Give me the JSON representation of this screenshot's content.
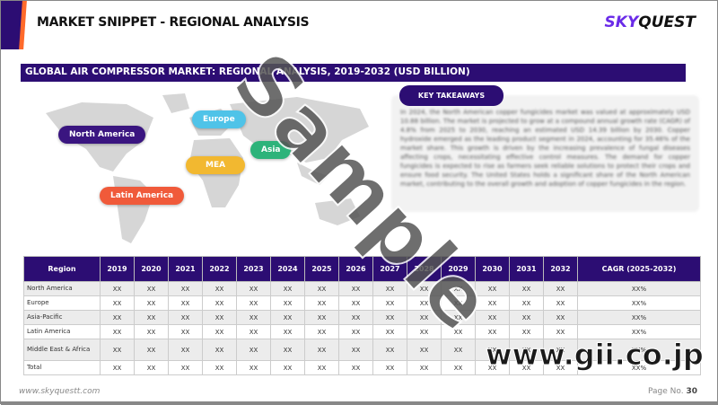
{
  "header": {
    "title": "MARKET SNIPPET - REGIONAL ANALYSIS",
    "logo_a": "SKY",
    "logo_b": "QUEST"
  },
  "subtitle": "GLOBAL AIR COMPRESSOR MARKET: REGIONAL ANALYSIS, 2019-2032 (USD BILLION)",
  "map": {
    "labels": [
      {
        "text": "North America",
        "color": "#3a1580"
      },
      {
        "text": "Europe",
        "color": "#4fc3e8"
      },
      {
        "text": "Asia",
        "color": "#2db37a"
      },
      {
        "text": "MEA",
        "color": "#f2b830"
      },
      {
        "text": "Latin America",
        "color": "#f05a3a"
      }
    ]
  },
  "key_takeaways": {
    "label": "KEY TAKEAWAYS",
    "text": "In 2024, the North American copper fungicides market was valued at approximately USD 10.88 billion. The market is projected to grow at a compound annual growth rate (CAGR) of 4.8% from 2025 to 2030, reaching an estimated USD 14.39 billion by 2030. Copper hydroxide emerged as the leading product segment in 2024, accounting for 35.46% of the market share. This growth is driven by the increasing prevalence of fungal diseases affecting crops, necessitating effective control measures. The demand for copper fungicides is expected to rise as farmers seek reliable solutions to protect their crops and ensure food security. The United States holds a significant share of the North American market, contributing to the overall growth and adoption of copper fungicides in the region."
  },
  "table": {
    "headers": [
      "Region",
      "2019",
      "2020",
      "2021",
      "2022",
      "2023",
      "2024",
      "2025",
      "2026",
      "2027",
      "2028",
      "2029",
      "2030",
      "2031",
      "2032",
      "CAGR (2025-2032)"
    ],
    "rows": [
      [
        "North America",
        "XX",
        "XX",
        "XX",
        "XX",
        "XX",
        "XX",
        "XX",
        "XX",
        "XX",
        "XX",
        "XX",
        "XX",
        "XX",
        "XX",
        "XX%"
      ],
      [
        "Europe",
        "XX",
        "XX",
        "XX",
        "XX",
        "XX",
        "XX",
        "XX",
        "XX",
        "XX",
        "XX",
        "XX",
        "XX",
        "XX",
        "XX",
        "XX%"
      ],
      [
        "Asia-Pacific",
        "XX",
        "XX",
        "XX",
        "XX",
        "XX",
        "XX",
        "XX",
        "XX",
        "XX",
        "XX",
        "XX",
        "XX",
        "XX",
        "XX",
        "XX%"
      ],
      [
        "Latin America",
        "XX",
        "XX",
        "XX",
        "XX",
        "XX",
        "XX",
        "XX",
        "XX",
        "XX",
        "XX",
        "XX",
        "XX",
        "XX",
        "XX",
        "XX%"
      ],
      [
        "Middle East & Africa",
        "XX",
        "XX",
        "XX",
        "XX",
        "XX",
        "XX",
        "XX",
        "XX",
        "XX",
        "XX",
        "XX",
        "XX",
        "XX",
        "XX",
        "XX%"
      ],
      [
        "Total",
        "XX",
        "XX",
        "XX",
        "XX",
        "XX",
        "XX",
        "XX",
        "XX",
        "XX",
        "XX",
        "XX",
        "XX",
        "XX",
        "XX",
        "XX%"
      ]
    ]
  },
  "footer": {
    "url": "www.skyquestt.com",
    "page_label": "Page No.",
    "page_number": "30"
  },
  "watermarks": {
    "sample": "Sample",
    "gii": "www.gii.co.jp"
  }
}
